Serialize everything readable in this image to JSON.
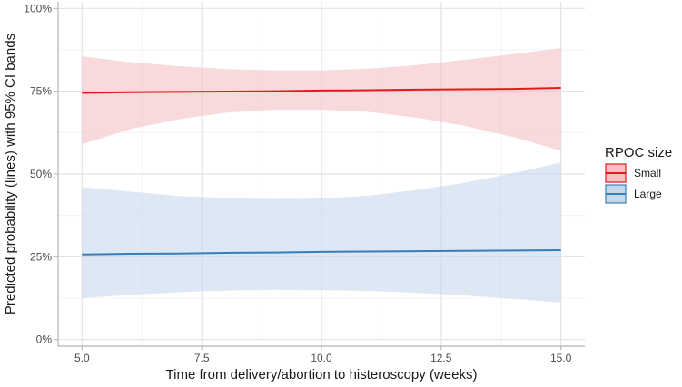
{
  "chart_data": {
    "type": "line",
    "xlabel": "Time from delivery/abortion to histeroscopy (weeks)",
    "ylabel": "Predicted probability (lines) with 95% CI bands",
    "xlim": [
      4.5,
      15.5
    ],
    "ylim": [
      -0.02,
      1.02
    ],
    "x_ticks": [
      5.0,
      7.5,
      10.0,
      12.5,
      15.0
    ],
    "x_tick_labels": [
      "5.0",
      "7.5",
      "10.0",
      "12.5",
      "15.0"
    ],
    "y_ticks": [
      0,
      0.25,
      0.5,
      0.75,
      1.0
    ],
    "y_tick_labels": [
      "0%",
      "25%",
      "50%",
      "75%",
      "100%"
    ],
    "grid": true,
    "legend": {
      "title": "RPOC size",
      "position": "right"
    },
    "series": [
      {
        "name": "Small",
        "color": "#e41a1c",
        "band_color": "#f4c2c4",
        "x": [
          5,
          6,
          7,
          8,
          9,
          10,
          11,
          12,
          13,
          14,
          15
        ],
        "y": [
          0.745,
          0.747,
          0.748,
          0.749,
          0.75,
          0.752,
          0.753,
          0.755,
          0.756,
          0.757,
          0.76
        ],
        "lower": [
          0.59,
          0.635,
          0.665,
          0.685,
          0.694,
          0.694,
          0.687,
          0.67,
          0.645,
          0.612,
          0.57
        ],
        "upper": [
          0.855,
          0.838,
          0.826,
          0.817,
          0.813,
          0.813,
          0.818,
          0.829,
          0.845,
          0.862,
          0.88
        ]
      },
      {
        "name": "Large",
        "color": "#377eb8",
        "band_color": "#c6d9ec",
        "x": [
          5,
          6,
          7,
          8,
          9,
          10,
          11,
          12,
          13,
          14,
          15
        ],
        "y": [
          0.257,
          0.259,
          0.26,
          0.262,
          0.263,
          0.265,
          0.266,
          0.267,
          0.268,
          0.269,
          0.27
        ],
        "lower": [
          0.125,
          0.135,
          0.143,
          0.148,
          0.15,
          0.149,
          0.147,
          0.141,
          0.133,
          0.123,
          0.112
        ],
        "upper": [
          0.46,
          0.447,
          0.434,
          0.427,
          0.424,
          0.426,
          0.435,
          0.452,
          0.474,
          0.502,
          0.535
        ]
      }
    ]
  }
}
